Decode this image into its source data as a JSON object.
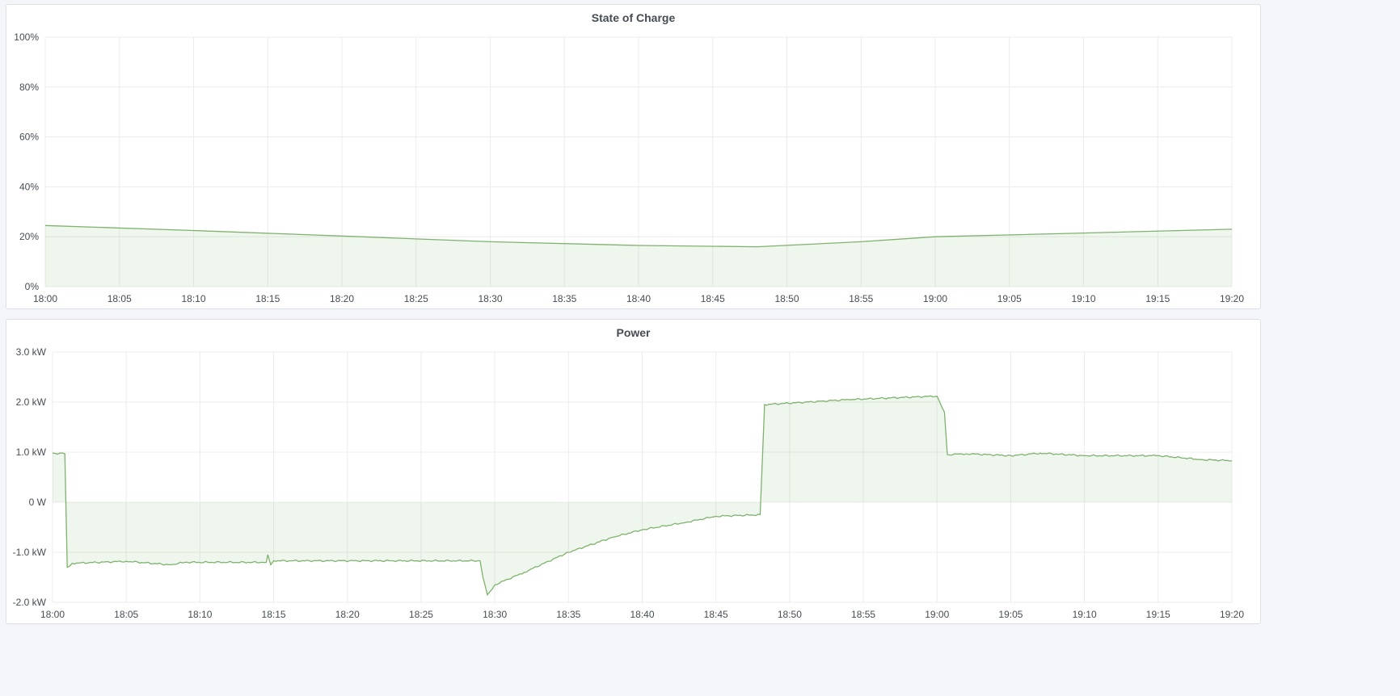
{
  "chart_data": [
    {
      "type": "area",
      "title": "State of Charge",
      "ylim": [
        0,
        100
      ],
      "yticks": [
        "0%",
        "20%",
        "40%",
        "60%",
        "80%",
        "100%"
      ],
      "xticks": [
        "18:00",
        "18:05",
        "18:10",
        "18:15",
        "18:20",
        "18:25",
        "18:30",
        "18:35",
        "18:40",
        "18:45",
        "18:50",
        "18:55",
        "19:00",
        "19:05",
        "19:10",
        "19:15",
        "19:20"
      ],
      "grid": true,
      "color": "#7eb26d",
      "x": [
        "18:00",
        "18:10",
        "18:20",
        "18:30",
        "18:40",
        "18:48",
        "18:55",
        "19:00",
        "19:10",
        "19:20"
      ],
      "values": [
        24.5,
        22.5,
        20.3,
        18,
        16.5,
        16,
        18,
        20,
        21.5,
        23
      ]
    },
    {
      "type": "area",
      "title": "Power",
      "ylim": [
        -2000,
        3000
      ],
      "yticks": [
        "-2.0 kW",
        "-1.0 kW",
        "0 W",
        "1.0 kW",
        "2.0 kW",
        "3.0 kW"
      ],
      "xticks": [
        "18:00",
        "18:05",
        "18:10",
        "18:15",
        "18:20",
        "18:25",
        "18:30",
        "18:35",
        "18:40",
        "18:45",
        "18:50",
        "18:55",
        "19:00",
        "19:05",
        "19:10",
        "19:15",
        "19:20"
      ],
      "grid": true,
      "color": "#7eb26d",
      "x": [
        "18:00:00",
        "18:00:50",
        "18:01:00",
        "18:01:20",
        "18:05:00",
        "18:08:00",
        "18:09:00",
        "18:14:30",
        "18:14:36",
        "18:14:48",
        "18:15:00",
        "18:29:00",
        "18:29:12",
        "18:29:30",
        "18:30:00",
        "18:32:00",
        "18:35:00",
        "18:38:00",
        "18:40:00",
        "18:43:00",
        "18:45:00",
        "18:48:00",
        "18:48:18",
        "18:54:00",
        "19:00:00",
        "19:00:30",
        "19:00:42",
        "19:02:00",
        "19:05:00",
        "19:07:00",
        "19:10:00",
        "19:15:00",
        "19:18:00",
        "19:20:00"
      ],
      "values": [
        980,
        970,
        -1300,
        -1220,
        -1180,
        -1250,
        -1200,
        -1200,
        -1050,
        -1250,
        -1170,
        -1170,
        -1500,
        -1850,
        -1650,
        -1400,
        -1000,
        -700,
        -550,
        -400,
        -280,
        -250,
        1950,
        2050,
        2120,
        1800,
        950,
        970,
        930,
        980,
        930,
        930,
        850,
        830
      ]
    }
  ]
}
